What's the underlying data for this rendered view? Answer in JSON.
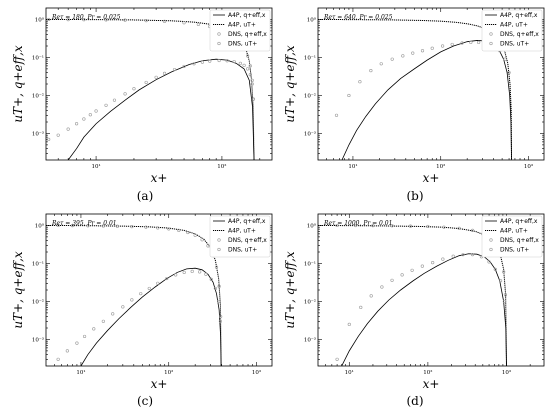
{
  "figure": {
    "captions": [
      "(a)",
      "(b)",
      "(c)",
      "(d)"
    ]
  },
  "chart_data": [
    {
      "type": "line",
      "panel": "(a)",
      "annotation": "Reτ = 180, Pr = 0.025",
      "xlabel": "x+",
      "ylabel": "uT+, q+eff,x",
      "xscale": "log",
      "yscale": "log",
      "xlim": [
        4,
        250
      ],
      "ylim": [
        0.0002,
        2
      ],
      "xticks": [
        {
          "value": 10,
          "label": "10¹"
        },
        {
          "value": 100,
          "label": "10²"
        }
      ],
      "yticks": [
        {
          "value": 0.001,
          "label": "10⁻³"
        },
        {
          "value": 0.01,
          "label": "10⁻²"
        },
        {
          "value": 0.1,
          "label": "10⁻¹"
        },
        {
          "value": 1,
          "label": "10⁰"
        }
      ],
      "legend": {
        "position": "top-right",
        "entries": [
          "A4P, q+eff,x",
          "A4P, uT+",
          "DNS, q+eff,x",
          "DNS, uT+"
        ]
      },
      "series": [
        {
          "name": "A4P, q+eff,x",
          "style": "solid",
          "x": [
            6,
            7,
            8,
            10,
            13,
            17,
            22,
            30,
            40,
            55,
            70,
            90,
            110,
            130,
            150,
            165,
            175,
            180
          ],
          "y": [
            0.0002,
            0.0004,
            0.0008,
            0.0018,
            0.0038,
            0.0075,
            0.014,
            0.026,
            0.042,
            0.065,
            0.082,
            0.09,
            0.085,
            0.07,
            0.05,
            0.025,
            0.005,
            0.0002
          ]
        },
        {
          "name": "A4P, uT+",
          "style": "dotted",
          "x": [
            4,
            10,
            20,
            40,
            60,
            80,
            100,
            120,
            140,
            155,
            165,
            172,
            177,
            180
          ],
          "y": [
            1.0,
            0.99,
            0.97,
            0.92,
            0.85,
            0.75,
            0.62,
            0.48,
            0.3,
            0.17,
            0.08,
            0.025,
            0.005,
            0.0002
          ]
        },
        {
          "name": "DNS, q+eff,x",
          "style": "markers",
          "x": [
            4.2,
            5,
            6,
            7,
            8,
            9,
            10,
            12,
            14,
            17,
            20,
            25,
            30,
            35,
            42,
            50,
            60,
            70,
            80,
            95,
            110,
            125,
            140,
            150,
            160,
            168,
            174,
            178
          ],
          "y": [
            0.0007,
            0.0009,
            0.0013,
            0.0018,
            0.0024,
            0.0031,
            0.0039,
            0.0055,
            0.0075,
            0.011,
            0.015,
            0.022,
            0.03,
            0.038,
            0.048,
            0.058,
            0.068,
            0.075,
            0.08,
            0.083,
            0.082,
            0.078,
            0.07,
            0.062,
            0.05,
            0.035,
            0.02,
            0.008
          ]
        },
        {
          "name": "DNS, uT+",
          "style": "markers",
          "x": [
            4.2,
            6,
            8,
            12,
            17,
            25,
            35,
            50,
            65,
            80,
            95,
            110,
            125,
            140,
            150,
            160,
            168,
            174,
            178
          ],
          "y": [
            1.0,
            0.99,
            0.985,
            0.975,
            0.96,
            0.93,
            0.89,
            0.82,
            0.74,
            0.65,
            0.55,
            0.45,
            0.35,
            0.25,
            0.18,
            0.11,
            0.06,
            0.025,
            0.008
          ]
        }
      ]
    },
    {
      "type": "line",
      "panel": "(b)",
      "annotation": "Reτ = 640, Pr = 0.025",
      "xlabel": "x+",
      "ylabel": "uT+, q+eff,x",
      "xscale": "log",
      "yscale": "log",
      "xlim": [
        4,
        1500
      ],
      "ylim": [
        0.0002,
        2
      ],
      "xticks": [
        {
          "value": 10,
          "label": "10¹"
        },
        {
          "value": 100,
          "label": "10²"
        },
        {
          "value": 1000,
          "label": "10³"
        }
      ],
      "yticks": [
        {
          "value": 0.001,
          "label": "10⁻³"
        },
        {
          "value": 0.01,
          "label": "10⁻²"
        },
        {
          "value": 0.1,
          "label": "10⁻¹"
        },
        {
          "value": 1,
          "label": "10⁰"
        }
      ],
      "legend": {
        "position": "top-right",
        "entries": [
          "A4P, q+eff,x",
          "A4P, uT+",
          "DNS, q+eff,x",
          "DNS, uT+"
        ]
      },
      "series": [
        {
          "name": "A4P, q+eff,x",
          "style": "solid",
          "x": [
            7.5,
            9,
            11,
            14,
            18,
            25,
            35,
            50,
            70,
            100,
            140,
            200,
            260,
            330,
            400,
            460,
            520,
            570,
            610,
            630,
            640
          ],
          "y": [
            0.0002,
            0.0005,
            0.0012,
            0.0028,
            0.006,
            0.014,
            0.028,
            0.05,
            0.085,
            0.14,
            0.2,
            0.26,
            0.28,
            0.27,
            0.22,
            0.16,
            0.09,
            0.04,
            0.01,
            0.002,
            0.0002
          ]
        },
        {
          "name": "A4P, uT+",
          "style": "dotted",
          "x": [
            4,
            10,
            30,
            60,
            100,
            150,
            200,
            260,
            330,
            400,
            470,
            530,
            580,
            615,
            635,
            640
          ],
          "y": [
            1.0,
            0.99,
            0.97,
            0.94,
            0.9,
            0.84,
            0.77,
            0.68,
            0.56,
            0.42,
            0.28,
            0.16,
            0.07,
            0.02,
            0.004,
            0.0002
          ]
        },
        {
          "name": "DNS, q+eff,x",
          "style": "markers",
          "x": [
            6.5,
            9,
            12,
            16,
            21,
            28,
            37,
            48,
            62,
            80,
            105,
            135,
            175,
            220,
            270,
            330,
            400,
            470,
            540,
            600
          ],
          "y": [
            0.003,
            0.01,
            0.023,
            0.045,
            0.068,
            0.09,
            0.11,
            0.13,
            0.15,
            0.175,
            0.2,
            0.22,
            0.24,
            0.25,
            0.25,
            0.24,
            0.2,
            0.15,
            0.09,
            0.04
          ]
        }
      ]
    },
    {
      "type": "line",
      "panel": "(c)",
      "annotation": "Reτ = 395, Pr = 0.01",
      "xlabel": "x+",
      "ylabel": "uT+, q+eff,x",
      "xscale": "log",
      "yscale": "log",
      "xlim": [
        4,
        1500
      ],
      "ylim": [
        0.0002,
        2
      ],
      "xticks": [
        {
          "value": 10,
          "label": "10¹"
        },
        {
          "value": 100,
          "label": "10²"
        },
        {
          "value": 1000,
          "label": "10³"
        }
      ],
      "yticks": [
        {
          "value": 0.001,
          "label": "10⁻³"
        },
        {
          "value": 0.01,
          "label": "10⁻²"
        },
        {
          "value": 0.1,
          "label": "10⁻¹"
        },
        {
          "value": 1,
          "label": "10⁰"
        }
      ],
      "legend": {
        "position": "top-right",
        "entries": [
          "A4P, q+eff,x",
          "A4P, uT+",
          "DNS, q+eff,x",
          "DNS, uT+"
        ]
      },
      "series": [
        {
          "name": "A4P, q+eff,x",
          "style": "solid",
          "x": [
            10,
            12,
            15,
            20,
            27,
            37,
            50,
            70,
            95,
            125,
            160,
            200,
            240,
            280,
            320,
            350,
            375,
            390,
            395
          ],
          "y": [
            0.0002,
            0.0004,
            0.0008,
            0.0017,
            0.0035,
            0.007,
            0.013,
            0.024,
            0.04,
            0.058,
            0.072,
            0.075,
            0.068,
            0.052,
            0.032,
            0.016,
            0.006,
            0.0012,
            0.0002
          ]
        },
        {
          "name": "A4P, uT+",
          "style": "dotted",
          "x": [
            4,
            10,
            30,
            60,
            100,
            150,
            200,
            250,
            300,
            340,
            370,
            388,
            395
          ],
          "y": [
            1.0,
            0.99,
            0.96,
            0.92,
            0.85,
            0.74,
            0.6,
            0.44,
            0.26,
            0.12,
            0.04,
            0.008,
            0.0002
          ]
        },
        {
          "name": "DNS, q+eff,x",
          "style": "markers",
          "x": [
            5.5,
            7,
            9,
            11,
            14,
            18,
            23,
            30,
            38,
            48,
            60,
            75,
            95,
            120,
            150,
            185,
            225,
            265,
            305,
            340,
            370,
            388
          ],
          "y": [
            0.0003,
            0.0005,
            0.0008,
            0.0012,
            0.0019,
            0.003,
            0.0047,
            0.0072,
            0.011,
            0.016,
            0.022,
            0.03,
            0.04,
            0.05,
            0.058,
            0.062,
            0.06,
            0.052,
            0.038,
            0.022,
            0.01,
            0.003
          ]
        },
        {
          "name": "DNS, uT+",
          "style": "markers",
          "x": [
            5.5,
            8,
            12,
            18,
            26,
            38,
            55,
            75,
            100,
            130,
            165,
            200,
            240,
            280,
            320,
            350,
            375,
            390
          ],
          "y": [
            1.0,
            0.99,
            0.98,
            0.97,
            0.95,
            0.93,
            0.9,
            0.86,
            0.81,
            0.74,
            0.65,
            0.55,
            0.42,
            0.29,
            0.16,
            0.08,
            0.025,
            0.004
          ]
        }
      ]
    },
    {
      "type": "line",
      "panel": "(d)",
      "annotation": "Reτ = 1000, Pr = 0.01",
      "xlabel": "x+",
      "ylabel": "uT+, q+eff,x",
      "xscale": "log",
      "yscale": "log",
      "xlim": [
        4,
        3000
      ],
      "ylim": [
        0.0002,
        2
      ],
      "xticks": [
        {
          "value": 10,
          "label": "10¹"
        },
        {
          "value": 100,
          "label": "10²"
        },
        {
          "value": 1000,
          "label": "10³"
        }
      ],
      "yticks": [
        {
          "value": 0.001,
          "label": "10⁻³"
        },
        {
          "value": 0.01,
          "label": "10⁻²"
        },
        {
          "value": 0.1,
          "label": "10⁻¹"
        },
        {
          "value": 1,
          "label": "10⁰"
        }
      ],
      "legend": {
        "position": "top-right",
        "entries": [
          "A4P, q+eff,x",
          "A4P, uT+",
          "DNS, q+eff,x",
          "DNS, uT+"
        ]
      },
      "series": [
        {
          "name": "A4P, q+eff,x",
          "style": "solid",
          "x": [
            8,
            10,
            13,
            17,
            23,
            32,
            45,
            65,
            90,
            130,
            180,
            250,
            330,
            420,
            520,
            620,
            720,
            820,
            920,
            980,
            1000
          ],
          "y": [
            0.0002,
            0.0005,
            0.0012,
            0.0026,
            0.0055,
            0.011,
            0.02,
            0.035,
            0.055,
            0.085,
            0.12,
            0.16,
            0.18,
            0.175,
            0.15,
            0.11,
            0.07,
            0.035,
            0.01,
            0.002,
            0.0002
          ]
        },
        {
          "name": "A4P, uT+",
          "style": "dotted",
          "x": [
            4,
            10,
            30,
            80,
            150,
            250,
            400,
            550,
            700,
            820,
            920,
            975,
            1000
          ],
          "y": [
            1.0,
            0.99,
            0.97,
            0.94,
            0.9,
            0.83,
            0.7,
            0.54,
            0.36,
            0.2,
            0.07,
            0.015,
            0.0002
          ]
        },
        {
          "name": "DNS, q+eff,x",
          "style": "markers",
          "x": [
            7,
            10,
            14,
            19,
            26,
            35,
            47,
            63,
            85,
            115,
            155,
            210,
            280,
            370,
            480,
            600,
            720,
            840,
            940
          ],
          "y": [
            0.0003,
            0.0025,
            0.007,
            0.014,
            0.024,
            0.036,
            0.05,
            0.066,
            0.085,
            0.105,
            0.13,
            0.155,
            0.17,
            0.17,
            0.15,
            0.11,
            0.07,
            0.035,
            0.01
          ]
        },
        {
          "name": "DNS, uT+",
          "style": "markers",
          "x": [
            7,
            12,
            20,
            35,
            60,
            100,
            160,
            250,
            370,
            500,
            620,
            740,
            840,
            920,
            970
          ],
          "y": [
            1.0,
            0.995,
            0.99,
            0.98,
            0.96,
            0.94,
            0.9,
            0.84,
            0.74,
            0.6,
            0.46,
            0.3,
            0.16,
            0.06,
            0.015
          ]
        }
      ]
    }
  ]
}
